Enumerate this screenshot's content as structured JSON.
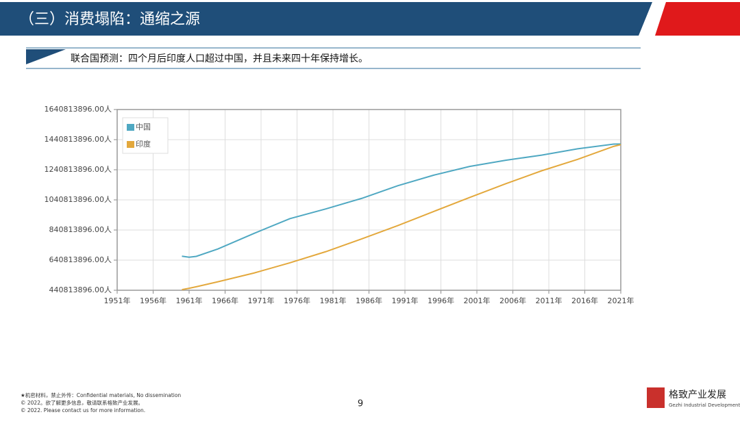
{
  "header": {
    "title": "（三）消费塌陷：通缩之源"
  },
  "subtitle": "联合国预测：四个月后印度人口超过中国，并且未来四十年保持增长。",
  "chart_data": {
    "type": "line",
    "x": [
      1960,
      1961,
      1962,
      1965,
      1970,
      1975,
      1980,
      1985,
      1990,
      1995,
      2000,
      2005,
      2010,
      2015,
      2020,
      2021
    ],
    "series": [
      {
        "name": "中国",
        "color": "#4fa8c2",
        "values": [
          667000000,
          660000000,
          666000000,
          715000000,
          818000000,
          916000000,
          981000000,
          1051000000,
          1135000000,
          1205000000,
          1263000000,
          1304000000,
          1338000000,
          1380000000,
          1411000000,
          1412000000
        ]
      },
      {
        "name": "印度",
        "color": "#e3a83c",
        "values": [
          445000000,
          454000000,
          464000000,
          497000000,
          555000000,
          623000000,
          697000000,
          782000000,
          870000000,
          964000000,
          1057000000,
          1148000000,
          1234000000,
          1310000000,
          1396000000,
          1408000000
        ]
      }
    ],
    "xlim": [
      1951,
      2021
    ],
    "xticks": [
      {
        "value": 1951,
        "label": "1951年"
      },
      {
        "value": 1956,
        "label": "1956年"
      },
      {
        "value": 1961,
        "label": "1961年"
      },
      {
        "value": 1966,
        "label": "1966年"
      },
      {
        "value": 1971,
        "label": "1971年"
      },
      {
        "value": 1976,
        "label": "1976年"
      },
      {
        "value": 1981,
        "label": "1981年"
      },
      {
        "value": 1986,
        "label": "1986年"
      },
      {
        "value": 1991,
        "label": "1991年"
      },
      {
        "value": 1996,
        "label": "1996年"
      },
      {
        "value": 2001,
        "label": "2001年"
      },
      {
        "value": 2006,
        "label": "2006年"
      },
      {
        "value": 2011,
        "label": "2011年"
      },
      {
        "value": 2016,
        "label": "2016年"
      },
      {
        "value": 2021,
        "label": "2021年"
      }
    ],
    "ylim": [
      440813896,
      1640813896
    ],
    "yticks": [
      {
        "value": 440813896,
        "label": "440813896.00人"
      },
      {
        "value": 640813896,
        "label": "640813896.00人"
      },
      {
        "value": 840813896,
        "label": "840813896.00人"
      },
      {
        "value": 1040813896,
        "label": "1040813896.00人"
      },
      {
        "value": 1240813896,
        "label": "1240813896.00人"
      },
      {
        "value": 1440813896,
        "label": "1440813896.00人"
      },
      {
        "value": 1640813896,
        "label": "1640813896.00人"
      }
    ],
    "grid": true,
    "legend": "upper left"
  },
  "footer": {
    "lines": [
      "★机密材料，禁止外传：Confidential materials, No dissemination",
      "© 2022。欲了解更多信息，敬请联系格致产业发展。",
      "© 2022. Please contact us for more information."
    ],
    "page_number": "9",
    "brand": "格致产业发展",
    "brand_en": "Gezhi Industrial Development"
  }
}
